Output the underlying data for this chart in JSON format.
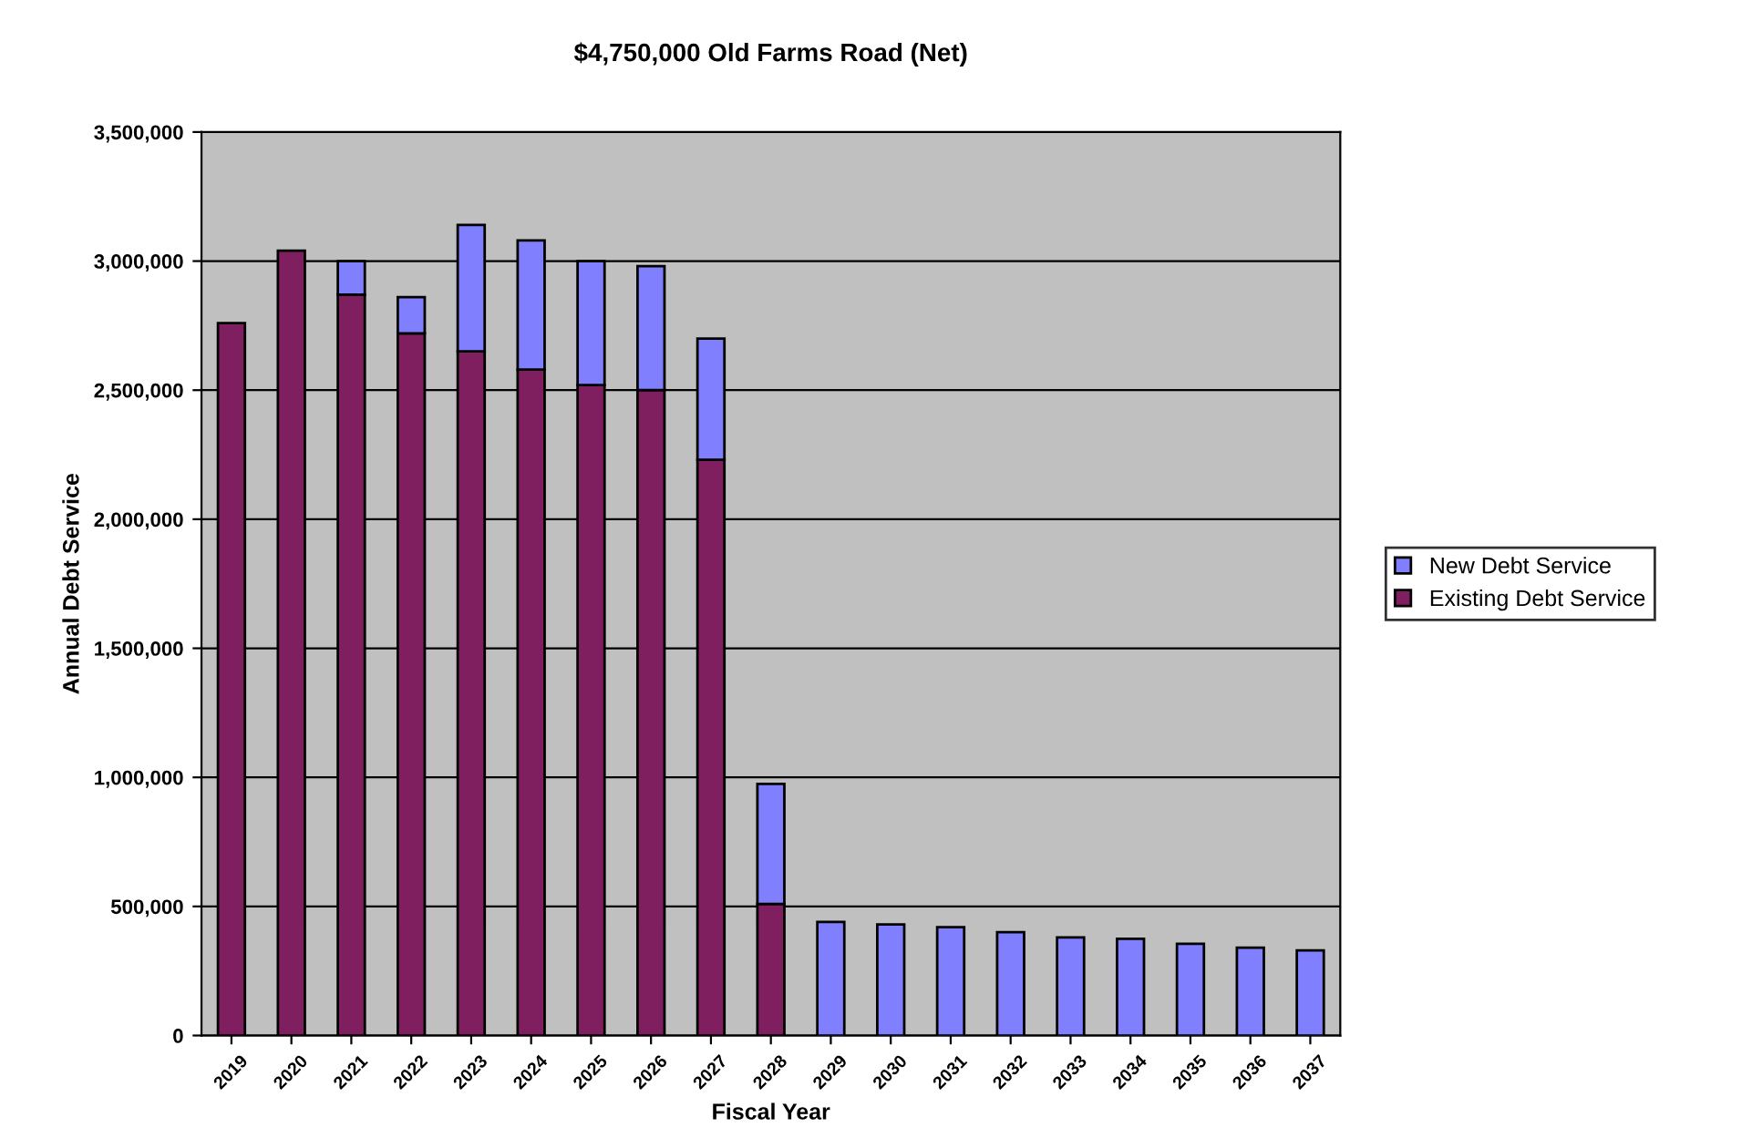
{
  "chart_data": {
    "type": "bar",
    "title": "$4,750,000 Old Farms Road (Net)",
    "xlabel": "Fiscal Year",
    "ylabel": "Annual Debt Service",
    "categories": [
      "2019",
      "2020",
      "2021",
      "2022",
      "2023",
      "2024",
      "2025",
      "2026",
      "2027",
      "2028",
      "2029",
      "2030",
      "2031",
      "2032",
      "2033",
      "2034",
      "2035",
      "2036",
      "2037"
    ],
    "stacked": true,
    "series": [
      {
        "name": "Existing Debt Service",
        "color": "#7f1f5f",
        "values": [
          2760000,
          3040000,
          2870000,
          2720000,
          2650000,
          2580000,
          2520000,
          2500000,
          2230000,
          510000,
          null,
          null,
          null,
          null,
          null,
          null,
          null,
          null,
          null
        ]
      },
      {
        "name": "New Debt Service",
        "color": "#8080ff",
        "values": [
          null,
          null,
          130000,
          140000,
          490000,
          500000,
          480000,
          480000,
          470000,
          465000,
          440000,
          430000,
          420000,
          400000,
          380000,
          375000,
          355000,
          340000,
          330000
        ]
      }
    ],
    "ylim": [
      0,
      3500000
    ],
    "yticks": [
      {
        "value": 0,
        "label": "0"
      },
      {
        "value": 500000,
        "label": "500,000"
      },
      {
        "value": 1000000,
        "label": "1,000,000"
      },
      {
        "value": 1500000,
        "label": "1,500,000"
      },
      {
        "value": 2000000,
        "label": "2,000,000"
      },
      {
        "value": 2500000,
        "label": "2,500,000"
      },
      {
        "value": 3000000,
        "label": "3,000,000"
      },
      {
        "value": 3500000,
        "label": "3,500,000"
      }
    ],
    "grid": "y",
    "legend": "right"
  }
}
